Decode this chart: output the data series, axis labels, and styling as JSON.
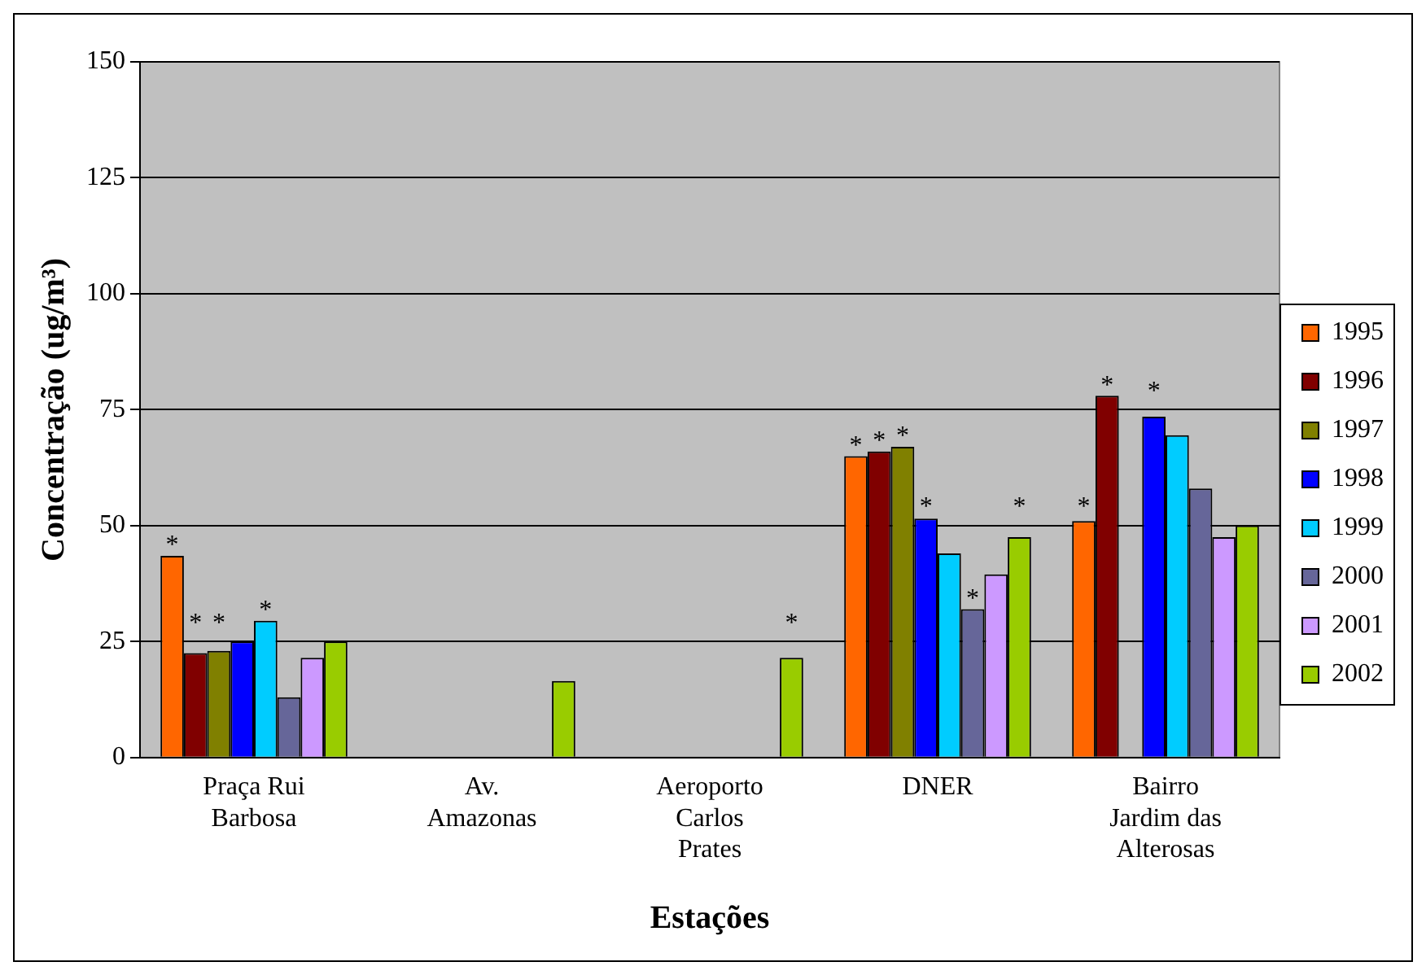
{
  "chart_data": {
    "type": "bar",
    "xlabel": "Estações",
    "ylabel": "Concentração (ug/m³)",
    "categories": [
      "Praça Rui Barbosa",
      "Av. Amazonas",
      "Aeroporto Carlos Prates",
      "DNER",
      "Bairro Jardim das Alterosas"
    ],
    "series": [
      {
        "name": "1995",
        "color": "#ff6600",
        "values": [
          43.5,
          null,
          null,
          65,
          51
        ],
        "value_labels": [
          "*",
          null,
          null,
          "*",
          "*"
        ]
      },
      {
        "name": "1996",
        "color": "#800000",
        "values": [
          22.5,
          null,
          null,
          66,
          78
        ],
        "value_labels": [
          "*",
          null,
          null,
          "*",
          "*"
        ]
      },
      {
        "name": "1997",
        "color": "#808000",
        "values": [
          23,
          null,
          null,
          67,
          null
        ],
        "value_labels": [
          "*",
          null,
          null,
          "*",
          null
        ]
      },
      {
        "name": "1998",
        "color": "#0000ff",
        "values": [
          25,
          null,
          null,
          51.5,
          73.5
        ],
        "value_labels": [
          null,
          null,
          null,
          "*",
          "*"
        ]
      },
      {
        "name": "1999",
        "color": "#00ccff",
        "values": [
          29.5,
          null,
          null,
          44,
          69.5
        ],
        "value_labels": [
          "*",
          null,
          null,
          null,
          null
        ]
      },
      {
        "name": "2000",
        "color": "#666699",
        "values": [
          13,
          null,
          null,
          32,
          58
        ],
        "value_labels": [
          null,
          null,
          null,
          "*",
          null
        ]
      },
      {
        "name": "2001",
        "color": "#cc99ff",
        "values": [
          21.5,
          null,
          null,
          39.5,
          47.5
        ],
        "value_labels": [
          null,
          null,
          null,
          null,
          null
        ]
      },
      {
        "name": "2002",
        "color": "#99cc00",
        "values": [
          25,
          16.5,
          21.5,
          47.5,
          50
        ],
        "value_labels": [
          null,
          null,
          "*",
          "*",
          null
        ]
      }
    ],
    "ylim": [
      0,
      150
    ],
    "yticks": [
      0,
      25,
      50,
      75,
      100,
      125,
      150
    ],
    "grid": "y",
    "legend": "right"
  }
}
